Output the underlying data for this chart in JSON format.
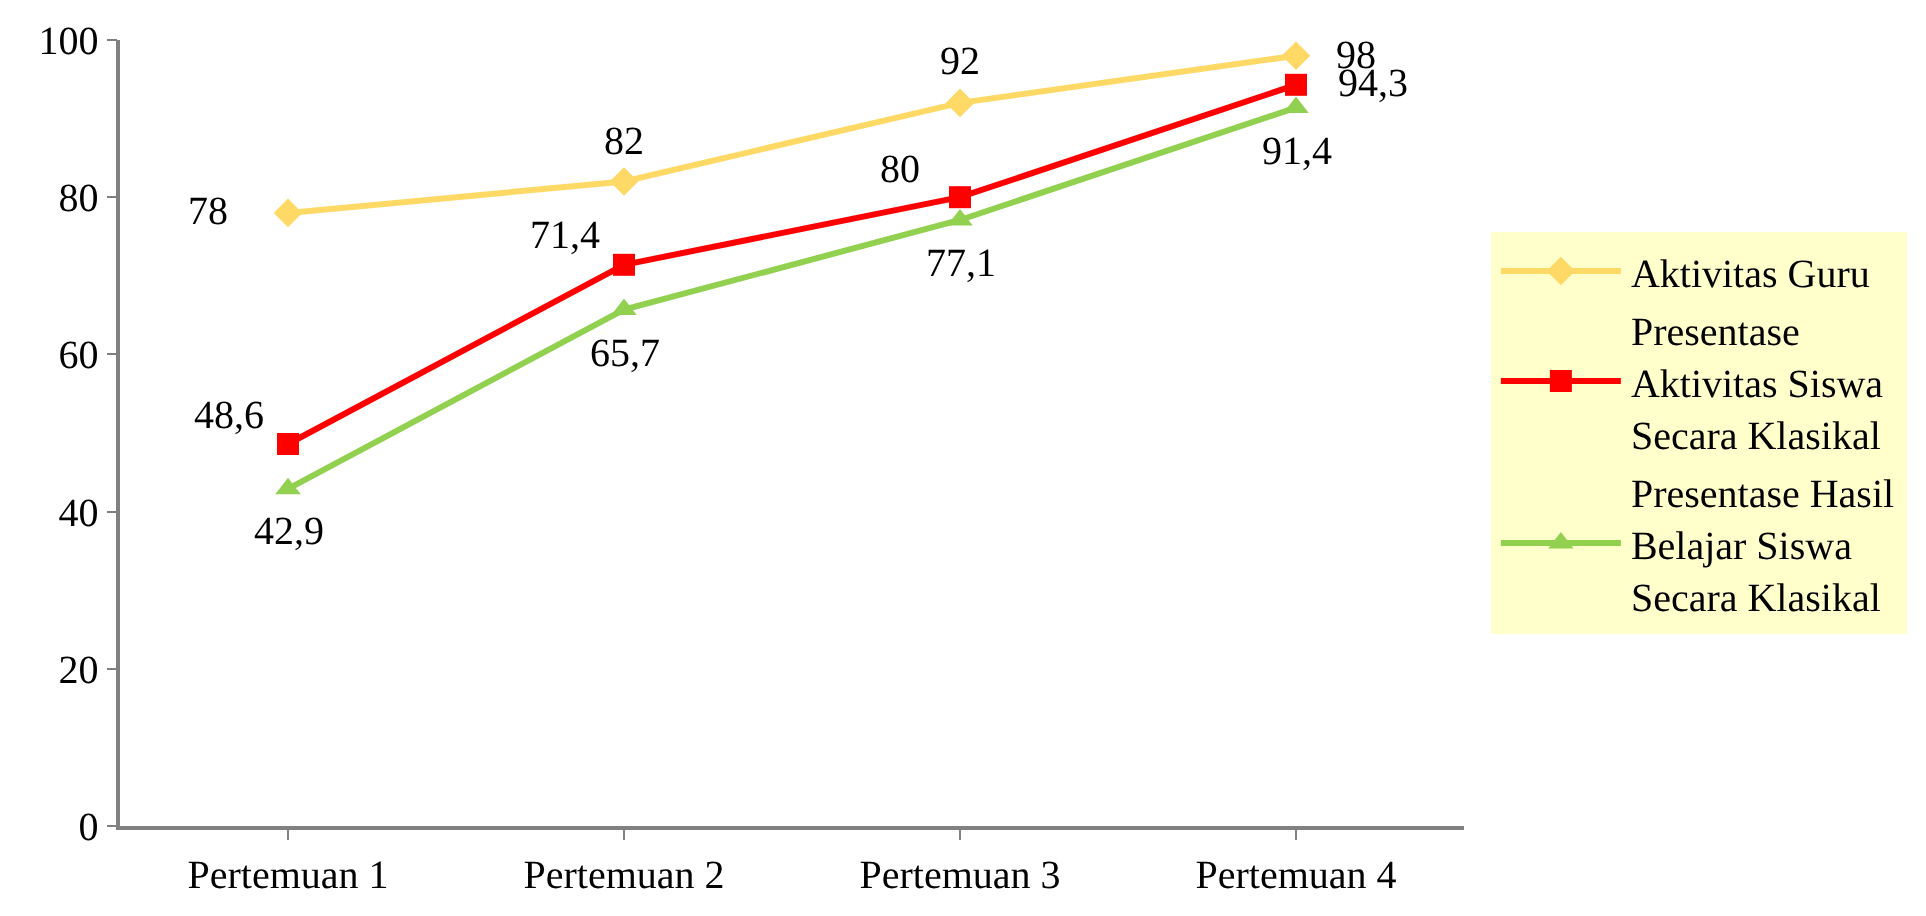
{
  "chart_data": {
    "type": "line",
    "categories": [
      "Pertemuan 1",
      "Pertemuan 2",
      "Pertemuan 3",
      "Pertemuan 4"
    ],
    "series": [
      {
        "name": "Aktivitas Guru",
        "color": "#ffd966",
        "marker": "diamond",
        "values": [
          78,
          82,
          92,
          98
        ],
        "value_labels": [
          "78",
          "82",
          "92",
          "98"
        ]
      },
      {
        "name": "Presentase Aktivitas Siswa Secara Klasikal",
        "color": "#ff0000",
        "marker": "square",
        "values": [
          48.6,
          71.4,
          80,
          94.3
        ],
        "value_labels": [
          "48,6",
          "71,4",
          "80",
          "94,3"
        ]
      },
      {
        "name": "Presentase Hasil Belajar Siswa Secara Klasikal",
        "color": "#92d050",
        "marker": "triangle",
        "values": [
          42.9,
          65.7,
          77.1,
          91.4
        ],
        "value_labels": [
          "42,9",
          "65,7",
          "77,1",
          "91,4"
        ]
      }
    ],
    "ylim": [
      0,
      100
    ],
    "yticks": [
      0,
      20,
      40,
      60,
      80,
      100
    ],
    "legend": "right",
    "line_style": "solid"
  }
}
